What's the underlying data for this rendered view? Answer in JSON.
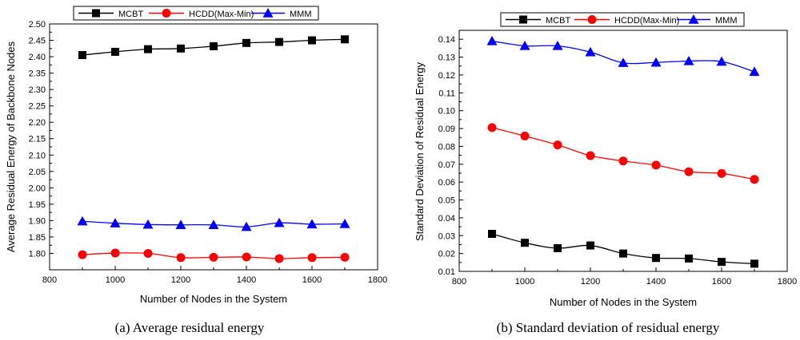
{
  "chart_data": [
    {
      "type": "line",
      "caption": "(a)  Average residual energy",
      "xlabel": "Number of Nodes in the System",
      "ylabel": "Average Residual Energy of Backbone Nodes",
      "xlim": [
        800,
        1800
      ],
      "ylim": [
        1.75,
        2.5
      ],
      "xticks": [
        "800",
        "1000",
        "1200",
        "1400",
        "1600",
        "1800"
      ],
      "yticks": [
        "1.80",
        "1.85",
        "1.90",
        "1.95",
        "2.00",
        "2.05",
        "2.10",
        "2.15",
        "2.20",
        "2.25",
        "2.30",
        "2.35",
        "2.40",
        "2.45",
        "2.50"
      ],
      "x": [
        900,
        1000,
        1100,
        1200,
        1300,
        1400,
        1500,
        1600,
        1700
      ],
      "legend_position": "top",
      "series": [
        {
          "name": "MCBT",
          "marker": "square",
          "color": "#000000",
          "values": [
            2.405,
            2.415,
            2.423,
            2.425,
            2.432,
            2.442,
            2.445,
            2.45,
            2.453
          ]
        },
        {
          "name": "HCDD(Max-Min)",
          "marker": "circle",
          "color": "#ff0000",
          "values": [
            1.796,
            1.801,
            1.8,
            1.787,
            1.788,
            1.789,
            1.784,
            1.787,
            1.788
          ]
        },
        {
          "name": "MMM",
          "marker": "triangle",
          "color": "#0000ff",
          "values": [
            1.898,
            1.892,
            1.888,
            1.887,
            1.887,
            1.881,
            1.893,
            1.889,
            1.89
          ]
        }
      ]
    },
    {
      "type": "line",
      "caption": "(b)  Standard deviation of residual energy",
      "xlabel": "Number of Nodes in the System",
      "ylabel": "Standard Deviation of Residual Energy",
      "xlim": [
        800,
        1800
      ],
      "ylim": [
        0.01,
        0.145
      ],
      "xticks": [
        "800",
        "1000",
        "1200",
        "1400",
        "1600",
        "1800"
      ],
      "yticks": [
        "0.01",
        "0.02",
        "0.03",
        "0.04",
        "0.05",
        "0.06",
        "0.07",
        "0.08",
        "0.09",
        "0.10",
        "0.11",
        "0.12",
        "0.13",
        "0.14"
      ],
      "x": [
        900,
        1000,
        1100,
        1200,
        1300,
        1400,
        1500,
        1600,
        1700
      ],
      "legend_position": "top",
      "series": [
        {
          "name": "MCBT",
          "marker": "square",
          "color": "#000000",
          "values": [
            0.031,
            0.026,
            0.023,
            0.0245,
            0.02,
            0.0175,
            0.0172,
            0.0153,
            0.0143
          ]
        },
        {
          "name": "HCDD(Max-Min)",
          "marker": "circle",
          "color": "#ff0000",
          "values": [
            0.0905,
            0.0858,
            0.0808,
            0.0748,
            0.0718,
            0.0695,
            0.0658,
            0.0648,
            0.0615
          ]
        },
        {
          "name": "MMM",
          "marker": "triangle",
          "color": "#0000ff",
          "values": [
            0.139,
            0.1363,
            0.1363,
            0.1328,
            0.1268,
            0.127,
            0.1278,
            0.1275,
            0.1218
          ]
        }
      ]
    }
  ]
}
